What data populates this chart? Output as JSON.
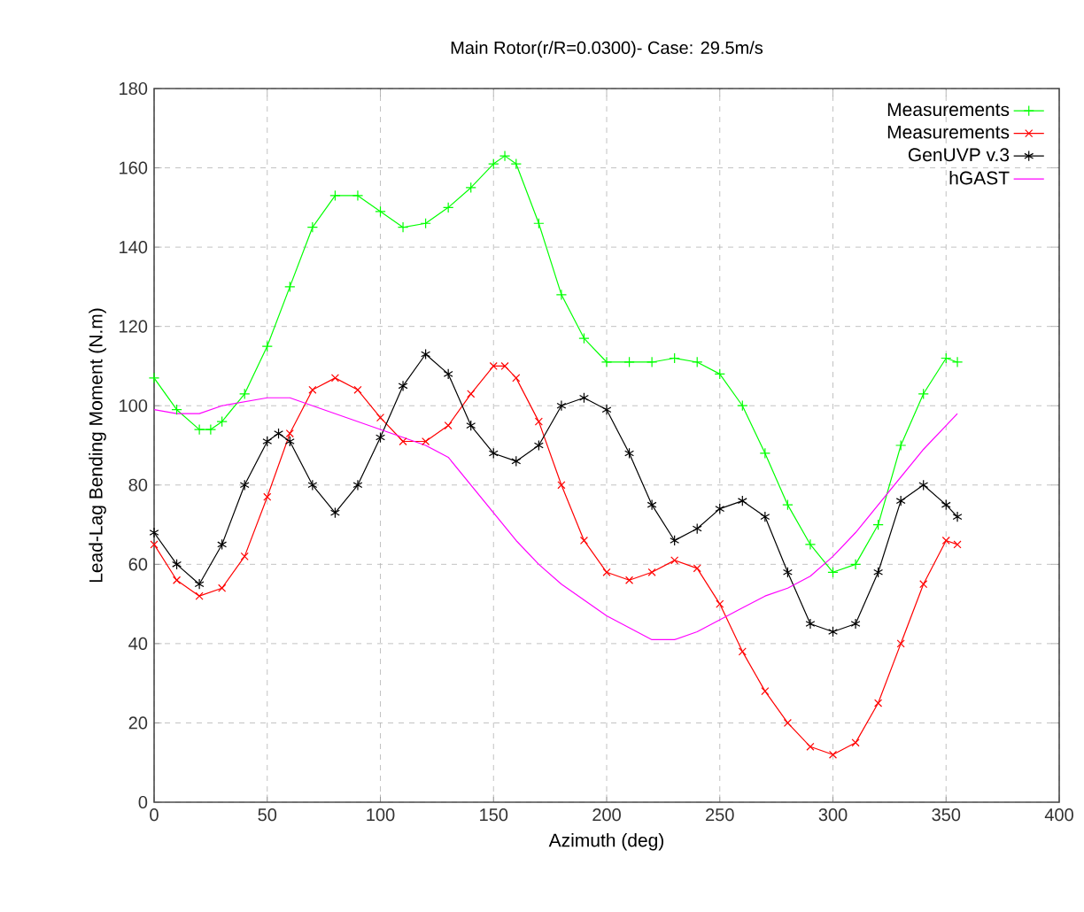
{
  "chart_data": {
    "type": "line",
    "title": "Main Rotor(r/R=0.0300)- Case: 29.5m/s",
    "xlabel": "Azimuth (deg)",
    "ylabel": "Lead-Lag Bending Moment (N.m)",
    "xlim": [
      0,
      400
    ],
    "ylim": [
      0,
      180
    ],
    "xticks": [
      0,
      50,
      100,
      150,
      200,
      250,
      300,
      350,
      400
    ],
    "yticks": [
      0,
      20,
      40,
      60,
      80,
      100,
      120,
      140,
      160,
      180
    ],
    "grid": true,
    "legend": "top right",
    "series": [
      {
        "name": "Measurements",
        "color": "#00ff00",
        "marker": "plus",
        "x": [
          0,
          10,
          20,
          25,
          30,
          40,
          50,
          60,
          70,
          80,
          90,
          100,
          110,
          120,
          130,
          140,
          150,
          155,
          160,
          170,
          180,
          190,
          200,
          210,
          220,
          230,
          240,
          250,
          260,
          270,
          280,
          290,
          300,
          310,
          320,
          330,
          340,
          350,
          355
        ],
        "values": [
          107,
          99,
          94,
          94,
          96,
          103,
          115,
          130,
          145,
          153,
          153,
          149,
          145,
          146,
          150,
          155,
          161,
          163,
          161,
          146,
          128,
          117,
          111,
          111,
          111,
          112,
          111,
          108,
          100,
          88,
          75,
          65,
          58,
          60,
          70,
          90,
          103,
          112,
          111
        ]
      },
      {
        "name": "Measurements",
        "color": "#ff0000",
        "marker": "x",
        "x": [
          0,
          10,
          20,
          30,
          40,
          50,
          60,
          70,
          80,
          90,
          100,
          110,
          120,
          130,
          140,
          150,
          155,
          160,
          170,
          180,
          190,
          200,
          210,
          220,
          230,
          240,
          250,
          260,
          270,
          280,
          290,
          300,
          310,
          320,
          330,
          340,
          350,
          355
        ],
        "values": [
          65,
          56,
          52,
          54,
          62,
          77,
          93,
          104,
          107,
          104,
          97,
          91,
          91,
          95,
          103,
          110,
          110,
          107,
          96,
          80,
          66,
          58,
          56,
          58,
          61,
          59,
          50,
          38,
          28,
          20,
          14,
          12,
          15,
          25,
          40,
          55,
          66,
          65
        ]
      },
      {
        "name": "GenUVP v.3",
        "color": "#000000",
        "marker": "cross",
        "x": [
          0,
          10,
          20,
          30,
          40,
          50,
          55,
          60,
          70,
          80,
          90,
          100,
          110,
          120,
          130,
          140,
          150,
          160,
          170,
          180,
          190,
          200,
          210,
          220,
          230,
          240,
          250,
          260,
          270,
          280,
          290,
          300,
          310,
          320,
          330,
          340,
          350,
          355
        ],
        "values": [
          68,
          60,
          55,
          65,
          80,
          91,
          93,
          91,
          80,
          73,
          80,
          92,
          105,
          113,
          108,
          95,
          88,
          86,
          90,
          100,
          102,
          99,
          88,
          75,
          66,
          69,
          74,
          76,
          72,
          58,
          45,
          43,
          45,
          58,
          76,
          80,
          75,
          72
        ]
      },
      {
        "name": "hGAST",
        "color": "#ff00ff",
        "marker": "none",
        "x": [
          0,
          10,
          20,
          30,
          40,
          50,
          60,
          70,
          80,
          90,
          100,
          110,
          120,
          130,
          140,
          150,
          160,
          170,
          180,
          190,
          200,
          210,
          220,
          230,
          240,
          250,
          260,
          270,
          280,
          290,
          300,
          310,
          320,
          330,
          340,
          350,
          355
        ],
        "values": [
          99,
          98,
          98,
          100,
          101,
          102,
          102,
          100,
          98,
          96,
          94,
          92,
          90,
          87,
          80,
          73,
          66,
          60,
          55,
          51,
          47,
          44,
          41,
          41,
          43,
          46,
          49,
          52,
          54,
          57,
          62,
          68,
          75,
          82,
          89,
          95,
          98
        ]
      }
    ]
  }
}
